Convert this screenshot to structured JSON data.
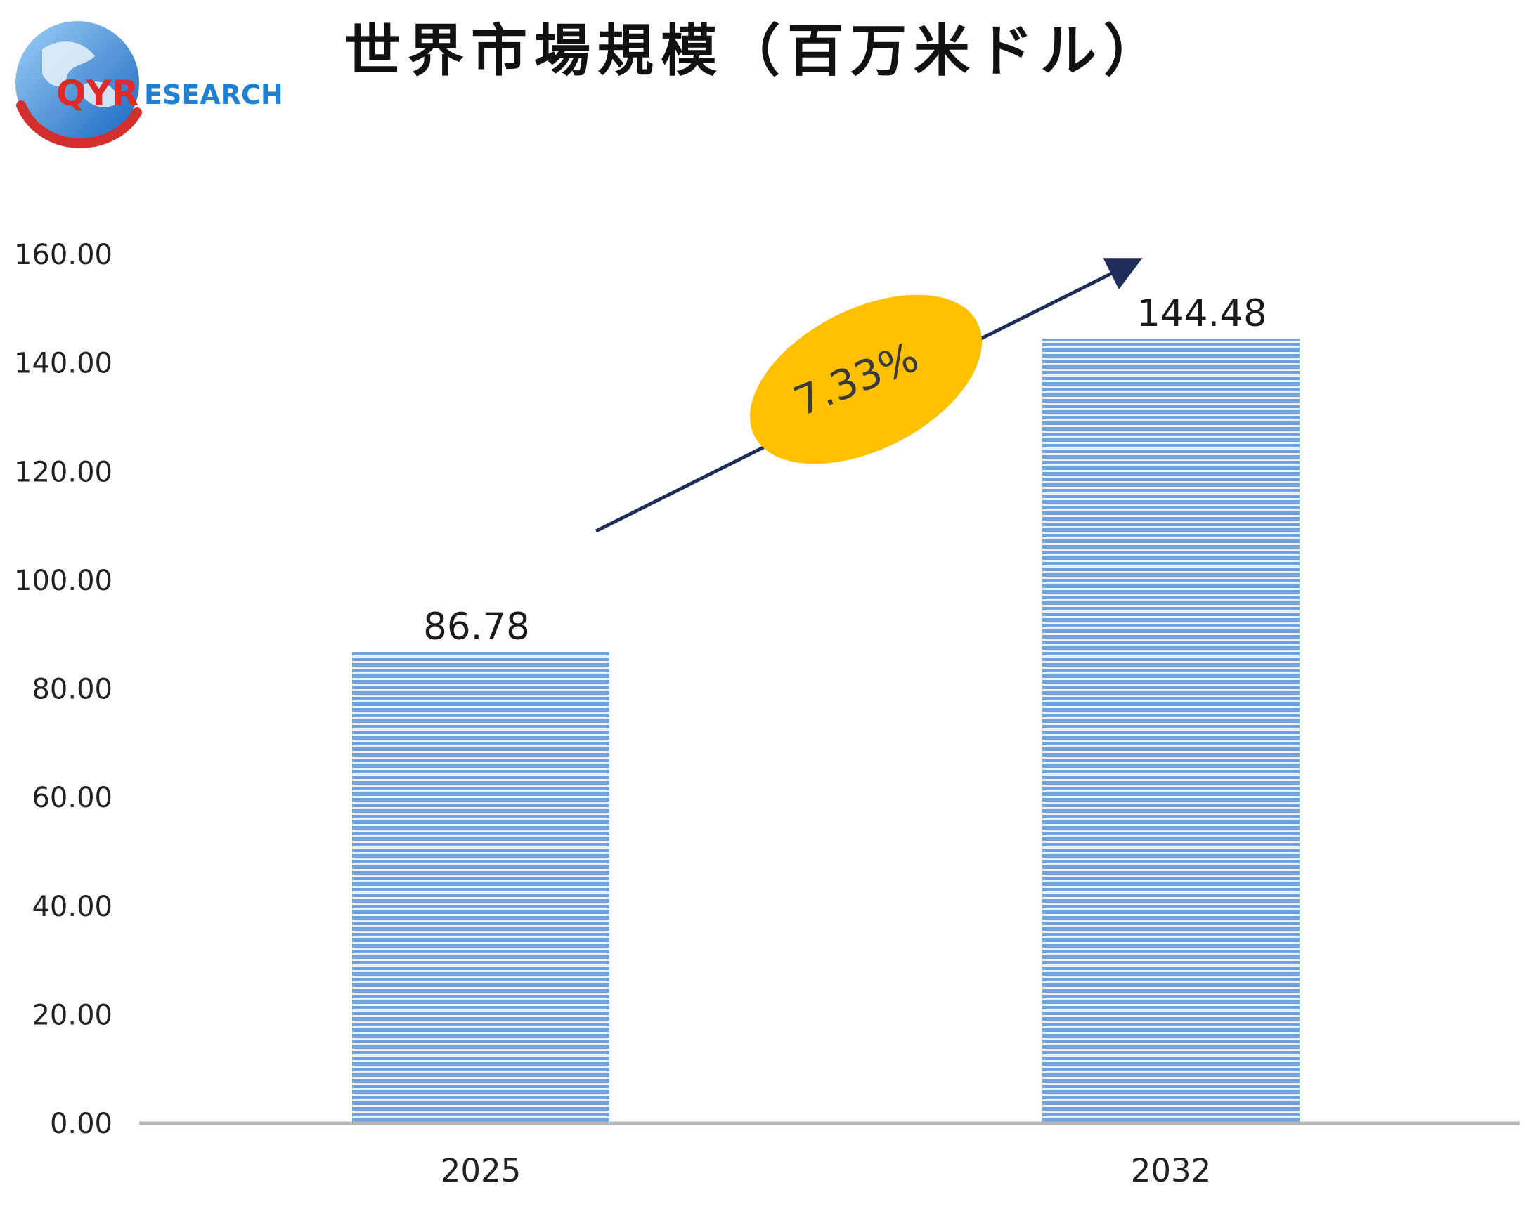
{
  "logo": {
    "brand_main": "QYR",
    "brand_sub": "ESEARCH"
  },
  "chart_data": {
    "type": "bar",
    "title": "世界市場規模（百万米ドル）",
    "categories": [
      "2025",
      "2032"
    ],
    "values": [
      86.78,
      144.48
    ],
    "data_labels": [
      "86.78",
      "144.48"
    ],
    "ylim": [
      0,
      160
    ],
    "yticks": [
      "0.00",
      "20.00",
      "40.00",
      "60.00",
      "80.00",
      "100.00",
      "120.00",
      "140.00",
      "160.00"
    ],
    "xlabel": "",
    "ylabel": "",
    "grid": false,
    "bar_color": "#6fa3e0",
    "bar_stripe_color": "#ffffff",
    "annotation": {
      "label": "7.33%",
      "shape_color": "#ffc000",
      "arrow_color": "#1f2d5a"
    }
  }
}
